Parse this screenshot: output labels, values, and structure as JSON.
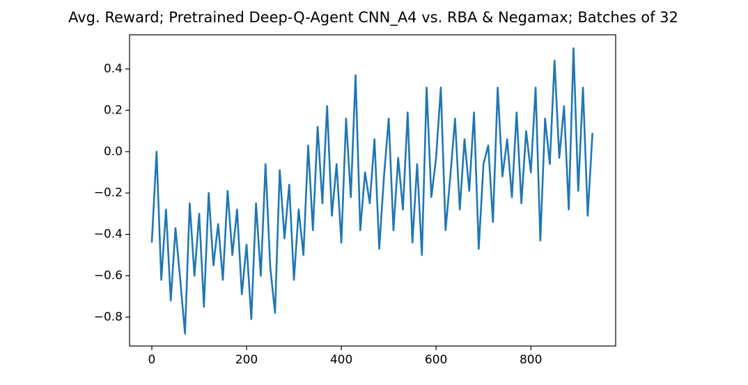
{
  "chart_data": {
    "type": "line",
    "title": "Avg. Reward; Pretrained Deep-Q-Agent CNN_A4 vs. RBA & Negamax; Batches of 32",
    "x": [
      0,
      10,
      20,
      30,
      40,
      50,
      60,
      70,
      80,
      90,
      100,
      110,
      120,
      130,
      140,
      150,
      160,
      170,
      180,
      190,
      200,
      210,
      220,
      230,
      240,
      250,
      260,
      270,
      280,
      290,
      300,
      310,
      320,
      330,
      340,
      350,
      360,
      370,
      380,
      390,
      400,
      410,
      420,
      430,
      440,
      450,
      460,
      470,
      480,
      490,
      500,
      510,
      520,
      530,
      540,
      550,
      560,
      570,
      580,
      590,
      600,
      610,
      620,
      630,
      640,
      650,
      660,
      670,
      680,
      690,
      700,
      710,
      720,
      730,
      740,
      750,
      760,
      770,
      780,
      790,
      800,
      810,
      820,
      830,
      840,
      850,
      860,
      870,
      880,
      890,
      900,
      910,
      920,
      930
    ],
    "values": [
      -0.44,
      0.0,
      -0.62,
      -0.28,
      -0.72,
      -0.37,
      -0.62,
      -0.88,
      -0.25,
      -0.6,
      -0.3,
      -0.75,
      -0.2,
      -0.55,
      -0.35,
      -0.62,
      -0.19,
      -0.5,
      -0.28,
      -0.69,
      -0.45,
      -0.81,
      -0.25,
      -0.6,
      -0.06,
      -0.56,
      -0.78,
      -0.09,
      -0.42,
      -0.16,
      -0.62,
      -0.28,
      -0.5,
      0.03,
      -0.38,
      0.12,
      -0.25,
      0.22,
      -0.31,
      -0.06,
      -0.44,
      0.16,
      -0.22,
      0.37,
      -0.38,
      -0.1,
      -0.25,
      0.06,
      -0.47,
      -0.12,
      0.16,
      -0.38,
      -0.03,
      -0.28,
      0.19,
      -0.44,
      -0.06,
      -0.5,
      0.31,
      -0.22,
      -0.03,
      0.31,
      -0.38,
      -0.12,
      0.16,
      -0.28,
      0.06,
      -0.19,
      0.19,
      -0.47,
      -0.06,
      0.03,
      -0.34,
      0.31,
      -0.12,
      0.06,
      -0.22,
      0.19,
      -0.25,
      0.1,
      -0.1,
      0.31,
      -0.43,
      0.16,
      -0.06,
      0.44,
      -0.03,
      0.22,
      -0.28,
      0.5,
      -0.19,
      0.31,
      -0.31,
      0.09
    ],
    "color": "#1f77b4",
    "xlim": [
      -47,
      979
    ],
    "xticks": [
      0,
      200,
      400,
      600,
      800
    ],
    "ylim": [
      -0.94,
      0.565
    ],
    "yticks": [
      {
        "value": -0.8,
        "label": "−0.8"
      },
      {
        "value": -0.6,
        "label": "−0.6"
      },
      {
        "value": -0.4,
        "label": "−0.4"
      },
      {
        "value": -0.2,
        "label": "−0.2"
      },
      {
        "value": 0,
        "label": "0.0"
      },
      0.2,
      0.4
    ]
  }
}
